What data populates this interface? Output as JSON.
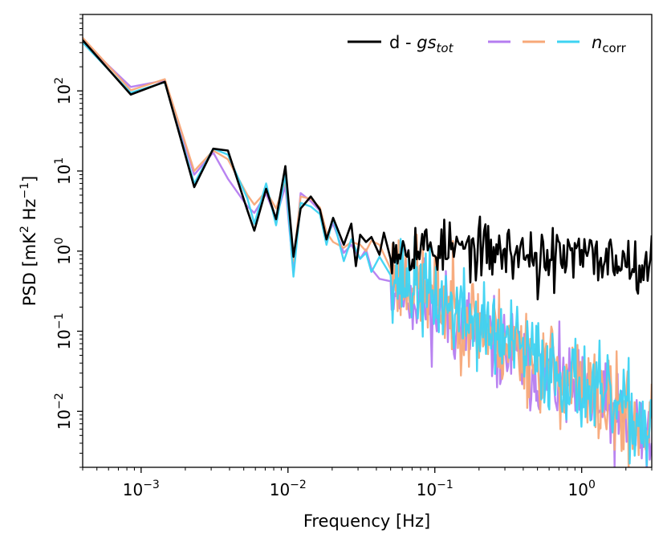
{
  "chart_data": {
    "type": "line",
    "xscale": "log",
    "yscale": "log",
    "xlim": [
      0.0004,
      3.0
    ],
    "ylim": [
      0.002,
      900
    ],
    "xlabel": "Frequency [Hz]",
    "ylabel": {
      "prefix": "PSD [mK",
      "sup1": "2",
      "mid": " Hz",
      "sup2": "−1",
      "suffix": "]"
    },
    "xticks": [
      {
        "value": 0.001,
        "base": "10",
        "exp": "−3"
      },
      {
        "value": 0.01,
        "base": "10",
        "exp": "−2"
      },
      {
        "value": 0.1,
        "base": "10",
        "exp": "−1"
      },
      {
        "value": 1,
        "base": "10",
        "exp": "0"
      }
    ],
    "yticks": [
      {
        "value": 0.01,
        "base": "10",
        "exp": "−2"
      },
      {
        "value": 0.1,
        "base": "10",
        "exp": "−1"
      },
      {
        "value": 1,
        "base": "10",
        "exp": "0"
      },
      {
        "value": 10,
        "base": "10",
        "exp": "1"
      },
      {
        "value": 100,
        "base": "10",
        "exp": "2"
      }
    ],
    "legend": {
      "placement": "top-right",
      "entry1": {
        "prefix": "d - ",
        "italic": "gs",
        "sub": "tot"
      },
      "entry2": {
        "italic": "n",
        "sub": "corr"
      },
      "entry2_colors": [
        "#b57cf0",
        "#f7a878",
        "#3dd3f2"
      ]
    },
    "series": [
      {
        "name": "n_corr (purple)",
        "color": "#b57cf0",
        "low": [
          [
            0.0004,
            420
          ],
          [
            0.00085,
            112
          ],
          [
            0.00145,
            135
          ],
          [
            0.0023,
            9
          ],
          [
            0.0031,
            17
          ],
          [
            0.0039,
            8
          ],
          [
            0.0053,
            3.6
          ],
          [
            0.0059,
            3.0
          ],
          [
            0.0071,
            5.2
          ],
          [
            0.0083,
            2.6
          ],
          [
            0.0096,
            6.5
          ],
          [
            0.0109,
            0.55
          ],
          [
            0.0122,
            5.3
          ],
          [
            0.0143,
            4.2
          ],
          [
            0.0165,
            3.2
          ],
          [
            0.0183,
            1.5
          ],
          [
            0.0203,
            2.2
          ],
          [
            0.024,
            0.95
          ],
          [
            0.027,
            1.2
          ],
          [
            0.031,
            0.8
          ],
          [
            0.034,
            1.05
          ],
          [
            0.037,
            0.6
          ],
          [
            0.042,
            0.45
          ],
          [
            0.05,
            0.42
          ]
        ],
        "noise": {
          "seed": 11,
          "f0": 0.05,
          "f1": 3.0,
          "n": 260,
          "a0": 0.42,
          "slope": -1.12,
          "amp": 0.55
        }
      },
      {
        "name": "n_corr (orange)",
        "color": "#f7a878",
        "low": [
          [
            0.0004,
            460
          ],
          [
            0.00085,
            102
          ],
          [
            0.00145,
            140
          ],
          [
            0.0023,
            10
          ],
          [
            0.0031,
            18
          ],
          [
            0.0039,
            14
          ],
          [
            0.0053,
            5.0
          ],
          [
            0.0059,
            3.8
          ],
          [
            0.0071,
            5.6
          ],
          [
            0.0083,
            3.4
          ],
          [
            0.0096,
            7.5
          ],
          [
            0.0109,
            0.75
          ],
          [
            0.0122,
            4.8
          ],
          [
            0.0143,
            4.5
          ],
          [
            0.0165,
            3.5
          ],
          [
            0.0183,
            1.7
          ],
          [
            0.0203,
            1.3
          ],
          [
            0.024,
            1.1
          ],
          [
            0.027,
            1.3
          ],
          [
            0.031,
            1.2
          ],
          [
            0.034,
            1.0
          ],
          [
            0.037,
            1.35
          ],
          [
            0.042,
            1.2
          ],
          [
            0.05,
            0.6
          ]
        ],
        "noise": {
          "seed": 23,
          "f0": 0.05,
          "f1": 3.0,
          "n": 260,
          "a0": 0.6,
          "slope": -1.15,
          "amp": 0.6
        }
      },
      {
        "name": "n_corr (cyan)",
        "color": "#3dd3f2",
        "low": [
          [
            0.0004,
            400
          ],
          [
            0.00085,
            95
          ],
          [
            0.00145,
            128
          ],
          [
            0.0023,
            7
          ],
          [
            0.0031,
            19
          ],
          [
            0.0039,
            16
          ],
          [
            0.0053,
            4.5
          ],
          [
            0.0059,
            2.2
          ],
          [
            0.0071,
            7.0
          ],
          [
            0.0083,
            2.1
          ],
          [
            0.0096,
            9.0
          ],
          [
            0.0109,
            0.48
          ],
          [
            0.0122,
            4.0
          ],
          [
            0.0143,
            3.6
          ],
          [
            0.0165,
            2.9
          ],
          [
            0.0183,
            1.2
          ],
          [
            0.0203,
            2.6
          ],
          [
            0.024,
            0.75
          ],
          [
            0.027,
            1.4
          ],
          [
            0.031,
            0.8
          ],
          [
            0.034,
            0.95
          ],
          [
            0.037,
            0.55
          ],
          [
            0.042,
            0.85
          ],
          [
            0.05,
            0.5
          ]
        ],
        "noise": {
          "seed": 37,
          "f0": 0.05,
          "f1": 3.0,
          "n": 260,
          "a0": 0.55,
          "slope": -1.1,
          "amp": 0.55
        }
      },
      {
        "name": "d - gs_tot",
        "color": "#000000",
        "low": [
          [
            0.0004,
            430
          ],
          [
            0.00085,
            90
          ],
          [
            0.00145,
            130
          ],
          [
            0.0023,
            6.3
          ],
          [
            0.0031,
            19
          ],
          [
            0.0039,
            18
          ],
          [
            0.0053,
            3.2
          ],
          [
            0.0059,
            1.8
          ],
          [
            0.0071,
            6.0
          ],
          [
            0.0083,
            2.5
          ],
          [
            0.0096,
            11.5
          ],
          [
            0.0109,
            0.85
          ],
          [
            0.0122,
            3.4
          ],
          [
            0.0143,
            4.8
          ],
          [
            0.0165,
            3.3
          ],
          [
            0.0183,
            1.4
          ],
          [
            0.0203,
            2.6
          ],
          [
            0.024,
            1.2
          ],
          [
            0.027,
            2.2
          ],
          [
            0.029,
            0.65
          ],
          [
            0.031,
            1.6
          ],
          [
            0.034,
            1.3
          ],
          [
            0.037,
            1.5
          ],
          [
            0.042,
            0.9
          ],
          [
            0.045,
            1.7
          ],
          [
            0.05,
            0.8
          ]
        ],
        "noise": {
          "seed": 53,
          "f0": 0.05,
          "f1": 3.0,
          "n": 190,
          "a0": 1.2,
          "slope": -0.12,
          "amp": 0.34,
          "dips": [
            [
              0.5,
              0.25
            ],
            [
              0.65,
              0.3
            ],
            [
              0.26,
              0.42
            ]
          ]
        }
      }
    ]
  }
}
